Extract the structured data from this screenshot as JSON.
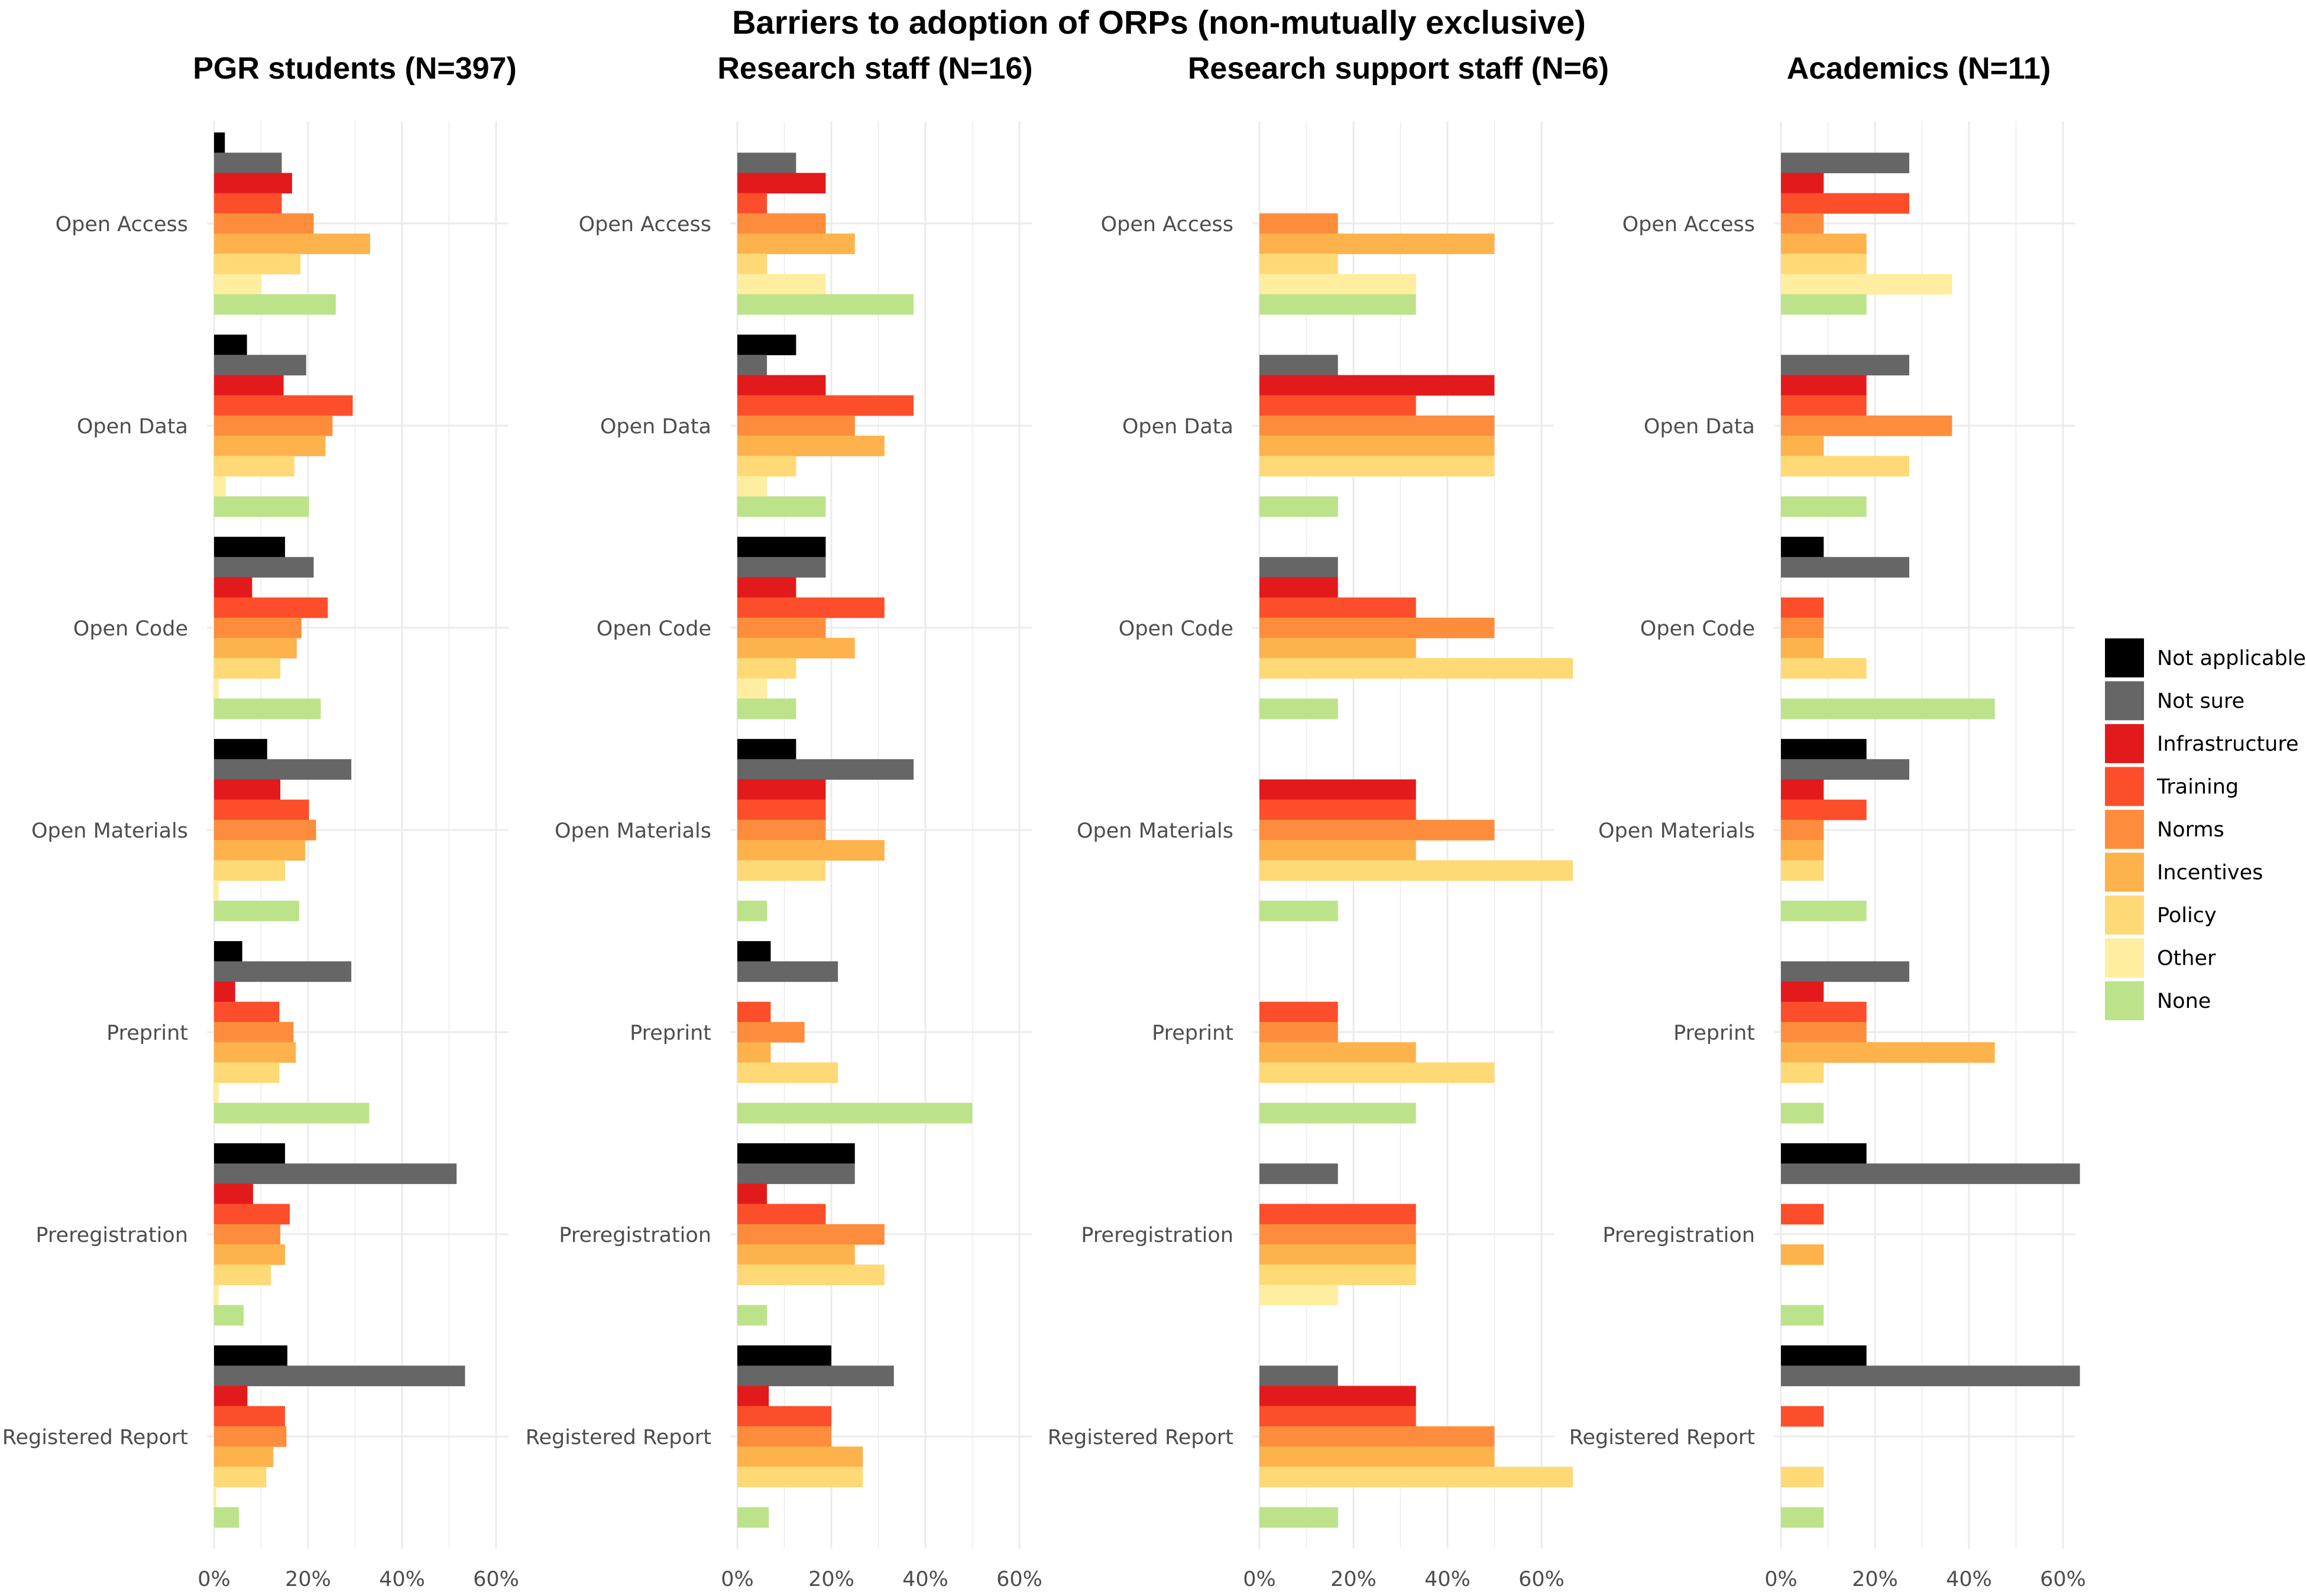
{
  "chart_data": {
    "type": "bar",
    "orientation": "horizontal",
    "title": "Barriers to adoption of ORPs (non-mutually exclusive)",
    "categories": [
      "Open Access",
      "Open Data",
      "Open Code",
      "Open Materials",
      "Preprint",
      "Preregistration",
      "Registered Report"
    ],
    "series_names": [
      "Not applicable",
      "Not sure",
      "Infrastructure",
      "Training",
      "Norms",
      "Incentives",
      "Policy",
      "Other",
      "None"
    ],
    "colors": [
      "#000000",
      "#666666",
      "#e31a1c",
      "#fc4e2a",
      "#fd8d3c",
      "#feb24c",
      "#fed976",
      "#ffeda0",
      "#bde38a"
    ],
    "xlim": [
      0,
      62
    ],
    "xticks": [
      "0%",
      "20%",
      "40%",
      "60%"
    ],
    "xtick_values": [
      0,
      20,
      40,
      60
    ],
    "legend_position": "right",
    "grid": true,
    "panels": [
      {
        "title": "PGR students (N=397)",
        "values": [
          [
            2.3,
            14.4,
            16.6,
            14.4,
            21.2,
            33.2,
            18.4,
            10.1,
            25.9
          ],
          [
            7.0,
            19.6,
            14.8,
            29.5,
            25.2,
            23.7,
            17.1,
            2.5,
            20.2
          ],
          [
            15.1,
            21.2,
            8.1,
            24.2,
            18.6,
            17.6,
            14.1,
            1.0,
            22.7
          ],
          [
            11.3,
            29.2,
            14.1,
            20.2,
            21.7,
            19.4,
            15.1,
            1.0,
            18.1
          ],
          [
            6.0,
            29.2,
            4.5,
            13.9,
            16.9,
            17.4,
            13.9,
            1.0,
            33.0
          ],
          [
            15.1,
            51.6,
            8.3,
            16.1,
            14.1,
            15.1,
            12.1,
            1.0,
            6.3
          ],
          [
            15.6,
            53.4,
            7.1,
            15.1,
            15.4,
            12.6,
            11.1,
            0.5,
            5.3
          ]
        ]
      },
      {
        "title": "Research staff (N=16)",
        "values": [
          [
            0,
            12.5,
            18.8,
            6.3,
            18.8,
            25.0,
            6.3,
            18.8,
            37.5
          ],
          [
            12.5,
            6.3,
            18.8,
            37.5,
            25.0,
            31.3,
            12.5,
            6.3,
            18.8
          ],
          [
            18.8,
            18.8,
            12.5,
            31.3,
            18.8,
            25.0,
            12.5,
            6.3,
            12.5
          ],
          [
            12.5,
            37.5,
            18.8,
            18.8,
            18.8,
            31.3,
            18.8,
            0,
            6.3
          ],
          [
            7.1,
            21.4,
            0,
            7.1,
            14.3,
            7.1,
            21.4,
            0,
            50.0
          ],
          [
            25.0,
            25.0,
            6.3,
            18.8,
            31.3,
            25.0,
            31.3,
            0,
            6.3
          ],
          [
            20.0,
            33.3,
            6.7,
            20.0,
            20.0,
            26.7,
            26.7,
            0,
            6.7
          ]
        ]
      },
      {
        "title": "Research support staff (N=6)",
        "values": [
          [
            0,
            0,
            0,
            0,
            16.7,
            50.0,
            16.7,
            33.3,
            33.3
          ],
          [
            0,
            16.7,
            50.0,
            33.3,
            50.0,
            50.0,
            50.0,
            0,
            16.7
          ],
          [
            0,
            16.7,
            16.7,
            33.3,
            50.0,
            33.3,
            66.7,
            0,
            16.7
          ],
          [
            0,
            0,
            33.3,
            33.3,
            50.0,
            33.3,
            66.7,
            0,
            16.7
          ],
          [
            0,
            0,
            0,
            16.7,
            16.7,
            33.3,
            50.0,
            0,
            33.3
          ],
          [
            0,
            16.7,
            0,
            33.3,
            33.3,
            33.3,
            33.3,
            16.7,
            0
          ],
          [
            0,
            16.7,
            33.3,
            33.3,
            50.0,
            50.0,
            66.7,
            0,
            16.7
          ]
        ]
      },
      {
        "title": "Academics (N=11)",
        "values": [
          [
            0,
            27.3,
            9.1,
            27.3,
            9.1,
            18.2,
            18.2,
            36.4,
            18.2
          ],
          [
            0,
            27.3,
            18.2,
            18.2,
            36.4,
            9.1,
            27.3,
            0,
            18.2
          ],
          [
            9.1,
            27.3,
            0,
            9.1,
            9.1,
            9.1,
            18.2,
            0,
            45.5
          ],
          [
            18.2,
            27.3,
            9.1,
            18.2,
            9.1,
            9.1,
            9.1,
            0,
            18.2
          ],
          [
            0,
            27.3,
            9.1,
            18.2,
            18.2,
            45.5,
            9.1,
            0,
            9.1
          ],
          [
            18.2,
            63.6,
            0,
            9.1,
            0,
            9.1,
            0,
            0,
            9.1
          ],
          [
            18.2,
            63.6,
            0,
            9.1,
            0,
            0,
            9.1,
            0,
            9.1
          ]
        ]
      }
    ]
  }
}
